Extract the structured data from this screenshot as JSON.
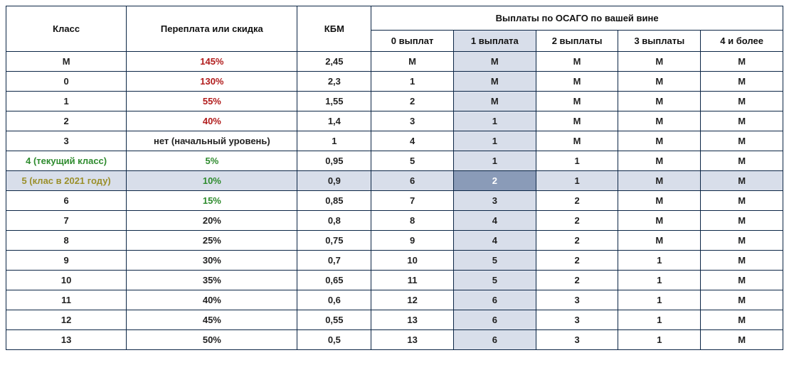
{
  "colors": {
    "border": "#0b2545",
    "highlight_col_bg": "#d8deea",
    "highlight_row_bg": "#d8deea",
    "highlight_intersection_bg": "#8a9bb8",
    "text_red": "#b11c1c",
    "text_green": "#2e8b2e",
    "text_olive": "#9a8f2a"
  },
  "header": {
    "class": "Класс",
    "discount": "Переплата или скидка",
    "kbm": "КБМ",
    "payouts_group": "Выплаты по ОСАГО по вашей вине",
    "sub": [
      "0 выплат",
      "1 выплата",
      "2 выплаты",
      "3 выплаты",
      "4 и более"
    ]
  },
  "highlight_column_index": 1,
  "highlight_row_index": 7,
  "rows": [
    {
      "class": "М",
      "discount": "145%",
      "disc_style": "red",
      "kbm": "2,45",
      "pay": [
        "М",
        "М",
        "М",
        "М",
        "М"
      ]
    },
    {
      "class": "0",
      "discount": "130%",
      "disc_style": "red",
      "kbm": "2,3",
      "pay": [
        "1",
        "М",
        "М",
        "М",
        "М"
      ]
    },
    {
      "class": "1",
      "discount": "55%",
      "disc_style": "red",
      "kbm": "1,55",
      "pay": [
        "2",
        "М",
        "М",
        "М",
        "М"
      ]
    },
    {
      "class": "2",
      "discount": "40%",
      "disc_style": "red",
      "kbm": "1,4",
      "pay": [
        "3",
        "1",
        "М",
        "М",
        "М"
      ]
    },
    {
      "class": "3",
      "discount": "нет (начальный уровень)",
      "disc_style": "",
      "kbm": "1",
      "pay": [
        "4",
        "1",
        "М",
        "М",
        "М"
      ]
    },
    {
      "class": "4 (текущий класс)",
      "class_style": "green",
      "discount": "5%",
      "disc_style": "green",
      "kbm": "0,95",
      "pay": [
        "5",
        "1",
        "1",
        "М",
        "М"
      ]
    },
    {
      "class": "5 (клас в 2021 году)",
      "class_style": "olive",
      "discount": "10%",
      "disc_style": "green",
      "kbm": "0,9",
      "pay": [
        "6",
        "2",
        "1",
        "М",
        "М"
      ]
    },
    {
      "class": "6",
      "discount": "15%",
      "disc_style": "green",
      "kbm": "0,85",
      "pay": [
        "7",
        "3",
        "2",
        "М",
        "М"
      ]
    },
    {
      "class": "7",
      "discount": "20%",
      "disc_style": "",
      "kbm": "0,8",
      "pay": [
        "8",
        "4",
        "2",
        "М",
        "М"
      ]
    },
    {
      "class": "8",
      "discount": "25%",
      "disc_style": "",
      "kbm": "0,75",
      "pay": [
        "9",
        "4",
        "2",
        "М",
        "М"
      ]
    },
    {
      "class": "9",
      "discount": "30%",
      "disc_style": "",
      "kbm": "0,7",
      "pay": [
        "10",
        "5",
        "2",
        "1",
        "М"
      ]
    },
    {
      "class": "10",
      "discount": "35%",
      "disc_style": "",
      "kbm": "0,65",
      "pay": [
        "11",
        "5",
        "2",
        "1",
        "М"
      ]
    },
    {
      "class": "11",
      "discount": "40%",
      "disc_style": "",
      "kbm": "0,6",
      "pay": [
        "12",
        "6",
        "3",
        "1",
        "М"
      ]
    },
    {
      "class": "12",
      "discount": "45%",
      "disc_style": "",
      "kbm": "0,55",
      "pay": [
        "13",
        "6",
        "3",
        "1",
        "М"
      ]
    },
    {
      "class": "13",
      "discount": "50%",
      "disc_style": "",
      "kbm": "0,5",
      "pay": [
        "13",
        "6",
        "3",
        "1",
        "М"
      ]
    }
  ]
}
